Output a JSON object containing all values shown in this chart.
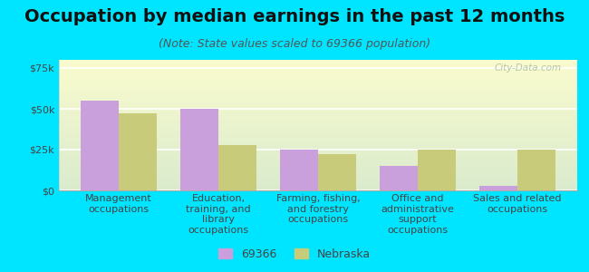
{
  "title": "Occupation by median earnings in the past 12 months",
  "subtitle": "(Note: State values scaled to 69366 population)",
  "categories": [
    "Management\noccupations",
    "Education,\ntraining, and\nlibrary\noccupations",
    "Farming, fishing,\nand forestry\noccupations",
    "Office and\nadministrative\nsupport\noccupations",
    "Sales and related\noccupations"
  ],
  "values_69366": [
    55000,
    50000,
    25000,
    15000,
    3000
  ],
  "values_nebraska": [
    47000,
    28000,
    22000,
    25000,
    25000
  ],
  "color_69366": "#c9a0dc",
  "color_nebraska": "#c8cc7a",
  "background_outer": "#00e5ff",
  "background_plot_top": "#e8f0d0",
  "background_plot_bottom": "#f8faf0",
  "ylim": [
    0,
    80000
  ],
  "yticks": [
    0,
    25000,
    50000,
    75000
  ],
  "ytick_labels": [
    "$0",
    "$25k",
    "$50k",
    "$75k"
  ],
  "legend_label_1": "69366",
  "legend_label_2": "Nebraska",
  "watermark": "City-Data.com",
  "title_fontsize": 14,
  "subtitle_fontsize": 9,
  "tick_label_fontsize": 8,
  "axis_label_fontsize": 8
}
